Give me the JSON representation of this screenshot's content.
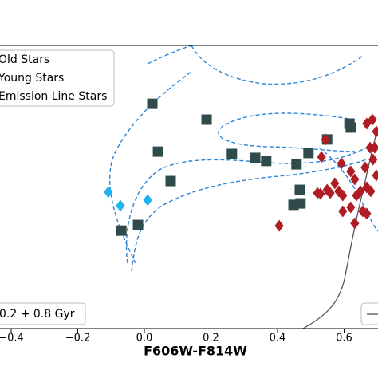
{
  "chart_data": {
    "type": "scatter",
    "x_label": "F606W-F814W",
    "xlim": [
      -0.4335,
      0.7018
    ],
    "ylim": [
      0,
      100
    ],
    "xticks": [
      {
        "value": -0.4,
        "label": "−0.4"
      },
      {
        "value": -0.2,
        "label": "−0.2"
      },
      {
        "value": 0,
        "label": "0.0"
      },
      0.2,
      0.4,
      0.6
    ],
    "legend": "upper left",
    "annotations": [
      "0.2 + 0.8 Gyr"
    ],
    "series": [
      {
        "name": "Old Stars",
        "marker": "square",
        "color": "#2f4b4b",
        "x": [
          0.024,
          0.187,
          0.041,
          0.263,
          0.333,
          0.366,
          0.457,
          0.493,
          0.549,
          0.616,
          0.62,
          0.467,
          0.448,
          0.469,
          0.079,
          -0.019,
          -0.069
        ],
        "values": [
          79.4,
          73.8,
          62.5,
          61.7,
          60.3,
          59.2,
          58.0,
          62.0,
          66.8,
          72.4,
          71.0,
          49.0,
          43.7,
          44.2,
          52.1,
          36.6,
          34.6
        ]
      },
      {
        "name": "Young Stars",
        "marker": "diamond",
        "color": "#1fb4f0",
        "x": [
          -0.108,
          -0.072,
          0.01
        ],
        "values": [
          48.2,
          43.4,
          45.4
        ]
      },
      {
        "name": "Emission Line Stars",
        "marker": "diamond",
        "color": "#b01c24",
        "x": [
          0.532,
          0.544,
          0.668,
          0.685,
          0.697,
          0.678,
          0.692,
          0.663,
          0.592,
          0.62,
          0.632,
          0.572,
          0.584,
          0.52,
          0.529,
          0.549,
          0.558,
          0.596,
          0.637,
          0.649,
          0.668,
          0.68,
          0.62,
          0.656,
          0.596,
          0.632,
          0.668,
          0.405,
          0.687,
          0.697
        ],
        "values": [
          60.6,
          66.8,
          72.4,
          73.8,
          69.6,
          63.9,
          63.9,
          56.9,
          58.3,
          55.5,
          52.7,
          51.3,
          48.5,
          47.9,
          47.6,
          49.0,
          47.9,
          47.0,
          47.0,
          48.5,
          49.9,
          48.5,
          42.8,
          41.4,
          41.4,
          37.2,
          40.6,
          36.3,
          59.7,
          54.1
        ]
      }
    ]
  }
}
